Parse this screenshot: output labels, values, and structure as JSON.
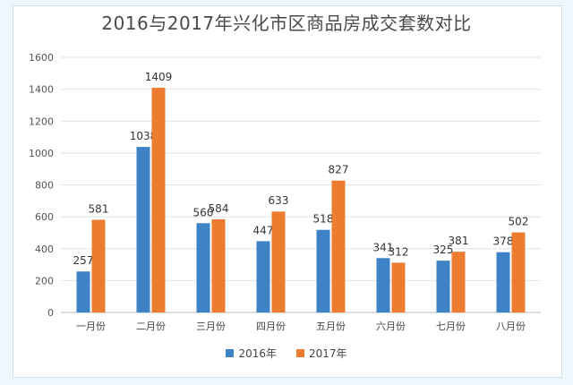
{
  "title": "2016与2017年兴化市区商品房成交套数对比",
  "chart_data": {
    "type": "bar",
    "title": "2016与2017年兴化市区商品房成交套数对比",
    "categories": [
      "一月份",
      "二月份",
      "三月份",
      "四月份",
      "五月份",
      "六月份",
      "七月份",
      "八月份"
    ],
    "series": [
      {
        "name": "2016年",
        "values": [
          257,
          1038,
          560,
          447,
          518,
          341,
          325,
          378
        ],
        "color": "#3d83c6"
      },
      {
        "name": "2017年",
        "values": [
          581,
          1409,
          584,
          633,
          827,
          312,
          381,
          502
        ],
        "color": "#ed7c31"
      }
    ],
    "yticks": [
      0,
      200,
      400,
      600,
      800,
      1000,
      1200,
      1400,
      1600
    ],
    "ylim": [
      0,
      1600
    ],
    "grid": true,
    "legend": "bottom"
  }
}
